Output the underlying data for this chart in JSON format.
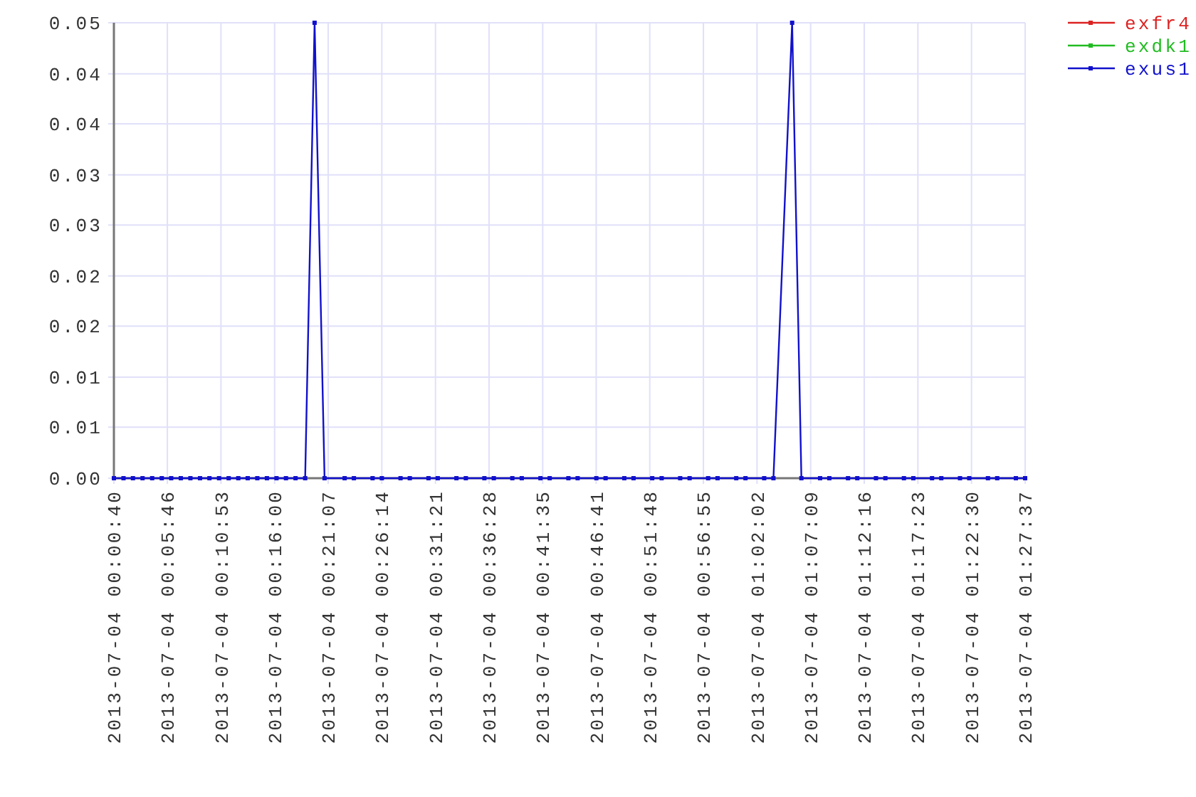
{
  "chart_data": {
    "type": "line",
    "x": [
      "2013-07-04T00:00:40",
      "2013-07-04T00:01:35",
      "2013-07-04T00:02:29",
      "2013-07-04T00:03:24",
      "2013-07-04T00:04:19",
      "2013-07-04T00:05:14",
      "2013-07-04T00:06:08",
      "2013-07-04T00:07:03",
      "2013-07-04T00:07:58",
      "2013-07-04T00:08:53",
      "2013-07-04T00:09:47",
      "2013-07-04T00:10:42",
      "2013-07-04T00:11:37",
      "2013-07-04T00:12:32",
      "2013-07-04T00:13:26",
      "2013-07-04T00:14:21",
      "2013-07-04T00:15:16",
      "2013-07-04T00:16:11",
      "2013-07-04T00:17:05",
      "2013-07-04T00:18:00",
      "2013-07-04T00:18:55",
      "2013-07-04T00:19:49",
      "2013-07-04T00:20:46",
      "2013-07-04T00:22:41",
      "2013-07-04T00:23:34",
      "2013-07-04T00:25:21",
      "2013-07-04T00:26:14",
      "2013-07-04T00:28:01",
      "2013-07-04T00:28:54",
      "2013-07-04T00:30:41",
      "2013-07-04T00:31:34",
      "2013-07-04T00:33:21",
      "2013-07-04T00:34:15",
      "2013-07-04T00:36:01",
      "2013-07-04T00:36:55",
      "2013-07-04T00:38:41",
      "2013-07-04T00:39:35",
      "2013-07-04T00:41:22",
      "2013-07-04T00:42:15",
      "2013-07-04T00:44:02",
      "2013-07-04T00:44:55",
      "2013-07-04T00:46:42",
      "2013-07-04T00:47:35",
      "2013-07-04T00:49:22",
      "2013-07-04T00:50:15",
      "2013-07-04T00:52:02",
      "2013-07-04T00:52:56",
      "2013-07-04T00:54:42",
      "2013-07-04T00:55:36",
      "2013-07-04T00:57:22",
      "2013-07-04T00:58:16",
      "2013-07-04T01:00:03",
      "2013-07-04T01:00:56",
      "2013-07-04T01:02:43",
      "2013-07-04T01:03:36",
      "2013-07-04T01:05:23",
      "2013-07-04T01:06:16",
      "2013-07-04T01:08:03",
      "2013-07-04T01:08:56",
      "2013-07-04T01:10:43",
      "2013-07-04T01:11:36",
      "2013-07-04T01:13:23",
      "2013-07-04T01:14:17",
      "2013-07-04T01:16:03",
      "2013-07-04T01:16:57",
      "2013-07-04T01:18:44",
      "2013-07-04T01:19:37",
      "2013-07-04T01:21:24",
      "2013-07-04T01:22:17",
      "2013-07-04T01:24:04",
      "2013-07-04T01:24:57",
      "2013-07-04T01:26:44",
      "2013-07-04T01:27:37"
    ],
    "series": [
      {
        "name": "exfr4",
        "color": "#dd2222",
        "values": [
          null,
          null,
          null,
          null,
          null,
          null,
          null,
          null,
          null,
          null,
          null,
          null,
          null,
          null,
          null,
          null,
          null,
          null,
          null,
          null,
          null,
          null,
          null,
          null,
          null,
          null,
          null,
          null,
          null,
          null,
          null,
          null,
          null,
          null,
          null,
          null,
          null,
          null,
          null,
          null,
          null,
          null,
          null,
          null,
          null,
          null,
          null,
          null,
          null,
          null,
          null,
          null,
          null,
          null,
          null,
          null,
          null,
          null,
          null,
          null,
          null,
          null,
          null,
          null,
          null,
          null,
          null,
          null,
          null,
          null,
          null,
          null,
          null
        ]
      },
      {
        "name": "exdk1",
        "color": "#22bb22",
        "values": [
          null,
          null,
          null,
          null,
          null,
          null,
          null,
          null,
          null,
          null,
          null,
          null,
          null,
          null,
          null,
          null,
          null,
          null,
          null,
          null,
          null,
          null,
          null,
          null,
          null,
          null,
          null,
          null,
          null,
          null,
          null,
          null,
          null,
          null,
          null,
          null,
          null,
          null,
          null,
          null,
          null,
          null,
          null,
          null,
          null,
          null,
          null,
          null,
          null,
          null,
          null,
          null,
          null,
          null,
          null,
          null,
          null,
          null,
          null,
          null,
          null,
          null,
          null,
          null,
          null,
          null,
          null,
          null,
          null,
          null,
          null,
          null,
          null
        ]
      },
      {
        "name": "exus1",
        "color": "#1111cc",
        "values": [
          0,
          0,
          0,
          0,
          0,
          0,
          0,
          0,
          0,
          0,
          0,
          0,
          0,
          0,
          0,
          0,
          0,
          0,
          0,
          0,
          0,
          0.05,
          0,
          0,
          0,
          0,
          0,
          0,
          0,
          0,
          0,
          0,
          0,
          0,
          0,
          0,
          0,
          0,
          0,
          0,
          0,
          0,
          0,
          0,
          0,
          0,
          0,
          0,
          0,
          0,
          0,
          0,
          0,
          0,
          0,
          0.05,
          0,
          0,
          0,
          0,
          0,
          0,
          0,
          0,
          0,
          0,
          0,
          0,
          0,
          0,
          0,
          0,
          0
        ]
      }
    ],
    "xlim": [
      "2013-07-04T00:00:40",
      "2013-07-04T01:27:37"
    ],
    "xticks": [
      {
        "value": "2013-07-04T00:00:40",
        "label": "2013-07-04 00:00:40"
      },
      {
        "value": "2013-07-04T00:05:46",
        "label": "2013-07-04 00:05:46"
      },
      {
        "value": "2013-07-04T00:10:53",
        "label": "2013-07-04 00:10:53"
      },
      {
        "value": "2013-07-04T00:16:00",
        "label": "2013-07-04 00:16:00"
      },
      {
        "value": "2013-07-04T00:21:07",
        "label": "2013-07-04 00:21:07"
      },
      {
        "value": "2013-07-04T00:26:14",
        "label": "2013-07-04 00:26:14"
      },
      {
        "value": "2013-07-04T00:31:21",
        "label": "2013-07-04 00:31:21"
      },
      {
        "value": "2013-07-04T00:36:28",
        "label": "2013-07-04 00:36:28"
      },
      {
        "value": "2013-07-04T00:41:35",
        "label": "2013-07-04 00:41:35"
      },
      {
        "value": "2013-07-04T00:46:41",
        "label": "2013-07-04 00:46:41"
      },
      {
        "value": "2013-07-04T00:51:48",
        "label": "2013-07-04 00:51:48"
      },
      {
        "value": "2013-07-04T00:56:55",
        "label": "2013-07-04 00:56:55"
      },
      {
        "value": "2013-07-04T01:02:02",
        "label": "2013-07-04 01:02:02"
      },
      {
        "value": "2013-07-04T01:07:09",
        "label": "2013-07-04 01:07:09"
      },
      {
        "value": "2013-07-04T01:12:16",
        "label": "2013-07-04 01:12:16"
      },
      {
        "value": "2013-07-04T01:17:23",
        "label": "2013-07-04 01:17:23"
      },
      {
        "value": "2013-07-04T01:22:30",
        "label": "2013-07-04 01:22:30"
      },
      {
        "value": "2013-07-04T01:27:37",
        "label": "2013-07-04 01:27:37"
      }
    ],
    "ylim": [
      0,
      0.05
    ],
    "yticks": [
      {
        "value": 0,
        "label": "0.00"
      },
      {
        "value": 0.0056,
        "label": "0.01"
      },
      {
        "value": 0.0111,
        "label": "0.01"
      },
      {
        "value": 0.0167,
        "label": "0.02"
      },
      {
        "value": 0.0222,
        "label": "0.02"
      },
      {
        "value": 0.0278,
        "label": "0.03"
      },
      {
        "value": 0.0333,
        "label": "0.03"
      },
      {
        "value": 0.0389,
        "label": "0.04"
      },
      {
        "value": 0.0444,
        "label": "0.04"
      },
      0.05
    ],
    "grid": true,
    "legend": "top right",
    "marker": "square",
    "line_style": "solid"
  }
}
